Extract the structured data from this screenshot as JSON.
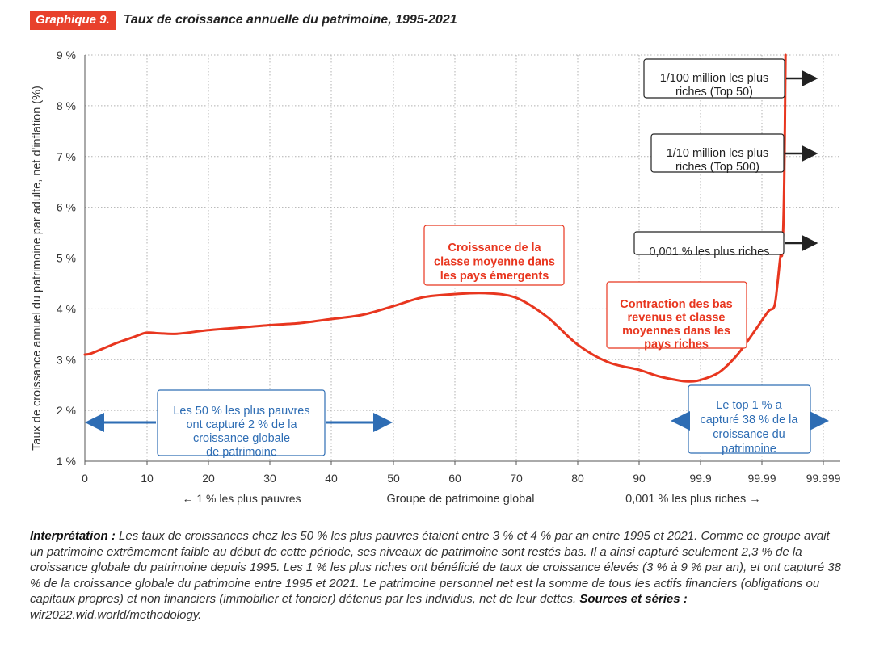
{
  "header": {
    "badge": "Graphique 9.",
    "title": "Taux de croissance annuelle du patrimoine, 1995-2021"
  },
  "colors": {
    "badge_bg": "#e8412c",
    "curve": "#e8361f",
    "annotation_red": "#e8361f",
    "annotation_blue": "#2e6db4",
    "grid": "#b0b0b0"
  },
  "chart_data": {
    "type": "line",
    "ylabel": "Taux de croissance annuel du patrimoine par adulte, net d'inflation (%)",
    "xlabel": "Groupe de patrimoine global",
    "xlabel_left": "← 1 % les plus pauvres",
    "xlabel_right": "0,001 % les plus riches →",
    "ylim": [
      1,
      9
    ],
    "yticks": [
      1,
      2,
      3,
      4,
      5,
      6,
      7,
      8,
      9
    ],
    "ytick_labels": [
      "1 %",
      "2 %",
      "3 %",
      "4 %",
      "5 %",
      "6 %",
      "7 %",
      "8 %",
      "9 %"
    ],
    "xtick_labels": [
      "0",
      "10",
      "20",
      "30",
      "40",
      "50",
      "60",
      "70",
      "80",
      "90",
      "99.9",
      "99.99",
      "99.999"
    ],
    "grid": true,
    "series": [
      {
        "x": [
          0,
          1,
          3,
          5,
          8,
          10,
          12,
          15,
          20,
          25,
          30,
          35,
          40,
          45,
          50,
          55,
          60,
          65,
          70,
          75,
          80,
          85,
          90,
          93,
          96,
          98,
          100,
          103,
          106,
          109,
          111,
          112,
          112.5,
          113,
          113.3,
          113.6,
          113.8
        ],
        "y": [
          3.1,
          3.12,
          3.22,
          3.32,
          3.45,
          3.53,
          3.52,
          3.51,
          3.58,
          3.63,
          3.68,
          3.72,
          3.8,
          3.88,
          4.05,
          4.23,
          4.29,
          4.31,
          4.22,
          3.85,
          3.3,
          2.95,
          2.8,
          2.68,
          2.6,
          2.57,
          2.6,
          2.75,
          3.1,
          3.6,
          3.95,
          4.05,
          4.5,
          5.05,
          5.15,
          6.5,
          9.0
        ]
      }
    ],
    "annotations": [
      {
        "text": "1/100 million les plus riches (Top 50)",
        "lines": [
          "1/100 million les plus",
          "riches (Top 50)"
        ],
        "style": "black"
      },
      {
        "text": "1/10 million les plus riches (Top 500)",
        "lines": [
          "1/10 million les plus",
          "riches (Top 500)"
        ],
        "style": "black"
      },
      {
        "text": "0,001 % les plus riches",
        "lines": [
          "0,001 % les plus riches"
        ],
        "style": "black"
      },
      {
        "text": "Croissance de la classe moyenne dans les pays émergents",
        "lines": [
          "Croissance de la",
          "classe moyenne dans",
          "les pays émergents"
        ],
        "style": "red"
      },
      {
        "text": "Contraction des bas revenus et classe moyennes dans les pays riches",
        "lines": [
          "Contraction des bas",
          "revenus et classe",
          "moyennes dans les",
          "pays riches"
        ],
        "style": "red"
      },
      {
        "text": "Les 50 % les plus pauvres ont capturé 2 % de la croissance globale de patrimoine",
        "lines": [
          "Les 50 % les plus pauvres",
          "ont capturé 2 % de la",
          "croissance globale",
          "de patrimoine"
        ],
        "style": "blue"
      },
      {
        "text": "Le top 1 % a capturé 38 % de la croissance du patrimoine",
        "lines": [
          "Le top 1 % a",
          "capturé 38 % de la",
          "croissance du",
          "patrimoine"
        ],
        "style": "blue"
      }
    ]
  },
  "interpretation": {
    "label": "Interprétation :",
    "text": " Les taux de croissances chez les 50 % les plus pauvres étaient entre 3 % et 4 % par an entre 1995 et 2021. Comme ce groupe avait un patrimoine extrêmement faible au début de cette période, ses niveaux de patrimoine sont restés bas. Il a ainsi capturé seulement 2,3 % de la croissance globale du patrimoine depuis 1995. Les 1 % les plus riches ont bénéficié de taux de croissance élevés (3 % à 9 % par an), et ont capturé 38 % de la croissance globale du patrimoine entre 1995 et 2021. Le patrimoine personnel net est la somme de tous les actifs financiers (obligations ou capitaux propres) et non financiers (immobilier et foncier) détenus par les individus, net de leur dettes.",
    "sources_label": "Sources et séries :",
    "sources_text": " wir2022.wid.world/methodology."
  }
}
